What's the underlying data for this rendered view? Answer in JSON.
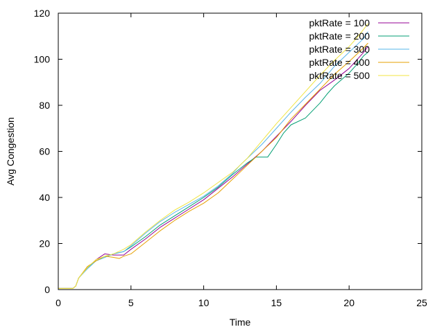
{
  "chart_data": {
    "type": "line",
    "title": "",
    "xlabel": "Time",
    "ylabel": "Avg Congestion",
    "xlim": [
      0,
      25
    ],
    "ylim": [
      0,
      120
    ],
    "x_ticks": [
      0,
      5,
      10,
      15,
      20,
      25
    ],
    "y_ticks": [
      0,
      20,
      40,
      60,
      80,
      100,
      120
    ],
    "grid": false,
    "legend_position": "top-right",
    "series": [
      {
        "name": "pktRate = 100",
        "color": "#940094",
        "points": [
          [
            0,
            0.5
          ],
          [
            1,
            0.5
          ],
          [
            1.2,
            1.5
          ],
          [
            1.4,
            5
          ],
          [
            2,
            9.5
          ],
          [
            2.6,
            13
          ],
          [
            3.2,
            15.5
          ],
          [
            3.8,
            15
          ],
          [
            4.5,
            15
          ],
          [
            5,
            17.5
          ],
          [
            6,
            22
          ],
          [
            7,
            27
          ],
          [
            8,
            31
          ],
          [
            9,
            35
          ],
          [
            10,
            39
          ],
          [
            11,
            44
          ],
          [
            12,
            49
          ],
          [
            13,
            54.5
          ],
          [
            14,
            60
          ],
          [
            15,
            66.5
          ],
          [
            16,
            73
          ],
          [
            17,
            80
          ],
          [
            18,
            86.5
          ],
          [
            19,
            91
          ],
          [
            20,
            96
          ],
          [
            20.5,
            99.5
          ],
          [
            21,
            103
          ],
          [
            21.3,
            105.5
          ]
        ]
      },
      {
        "name": "pktRate = 200",
        "color": "#009e73",
        "points": [
          [
            0,
            0.5
          ],
          [
            1,
            0.5
          ],
          [
            1.2,
            1.5
          ],
          [
            1.4,
            5
          ],
          [
            2,
            9.5
          ],
          [
            2.6,
            12.5
          ],
          [
            3.2,
            14
          ],
          [
            3.8,
            15.5
          ],
          [
            4.5,
            16.5
          ],
          [
            5,
            18.5
          ],
          [
            6,
            23
          ],
          [
            7,
            28
          ],
          [
            8,
            32
          ],
          [
            9,
            36
          ],
          [
            10,
            40
          ],
          [
            11,
            44.5
          ],
          [
            12,
            50
          ],
          [
            13,
            55
          ],
          [
            13.6,
            57.5
          ],
          [
            14.4,
            57.5
          ],
          [
            15,
            63
          ],
          [
            15.5,
            68
          ],
          [
            16,
            71.5
          ],
          [
            17,
            74.5
          ],
          [
            18,
            81
          ],
          [
            18.5,
            85
          ],
          [
            19,
            88.5
          ],
          [
            20,
            94
          ],
          [
            20.5,
            97.5
          ],
          [
            21,
            101.5
          ],
          [
            21.3,
            103
          ]
        ]
      },
      {
        "name": "pktRate = 300",
        "color": "#56b4e9",
        "points": [
          [
            0,
            0.5
          ],
          [
            1,
            0.5
          ],
          [
            1.2,
            1.5
          ],
          [
            1.4,
            5
          ],
          [
            2,
            9
          ],
          [
            2.6,
            12.5
          ],
          [
            3.2,
            14
          ],
          [
            3.8,
            15.5
          ],
          [
            4.5,
            16.5
          ],
          [
            5,
            19
          ],
          [
            6,
            24.5
          ],
          [
            7,
            29.5
          ],
          [
            8,
            33.5
          ],
          [
            9,
            37
          ],
          [
            10,
            40.5
          ],
          [
            11,
            45
          ],
          [
            12,
            50.5
          ],
          [
            12.5,
            54
          ],
          [
            13,
            57
          ],
          [
            14,
            63
          ],
          [
            15,
            70
          ],
          [
            16,
            77
          ],
          [
            17,
            83.5
          ],
          [
            18,
            89.5
          ],
          [
            19,
            97
          ],
          [
            20,
            103
          ],
          [
            20.5,
            106
          ],
          [
            21,
            109
          ],
          [
            21.3,
            112
          ]
        ]
      },
      {
        "name": "pktRate = 400",
        "color": "#e69f00",
        "points": [
          [
            0,
            0.5
          ],
          [
            1,
            0.5
          ],
          [
            1.2,
            1.5
          ],
          [
            1.4,
            5
          ],
          [
            2,
            10
          ],
          [
            2.6,
            12.5
          ],
          [
            3.2,
            14.5
          ],
          [
            3.8,
            14
          ],
          [
            4.2,
            13.5
          ],
          [
            4.5,
            14.5
          ],
          [
            5,
            15.5
          ],
          [
            6,
            20.5
          ],
          [
            7,
            25.5
          ],
          [
            8,
            30
          ],
          [
            9,
            34
          ],
          [
            10,
            37.5
          ],
          [
            11,
            42
          ],
          [
            12,
            48
          ],
          [
            13,
            54
          ],
          [
            14,
            60
          ],
          [
            15,
            66
          ],
          [
            16,
            74
          ],
          [
            17,
            80.5
          ],
          [
            18,
            87
          ],
          [
            19,
            93.5
          ],
          [
            20,
            99
          ],
          [
            20.5,
            102
          ],
          [
            21,
            105
          ],
          [
            21.3,
            107
          ]
        ]
      },
      {
        "name": "pktRate = 500",
        "color": "#f0e442",
        "points": [
          [
            0,
            0.5
          ],
          [
            1,
            0.5
          ],
          [
            1.2,
            1.5
          ],
          [
            1.4,
            5
          ],
          [
            2,
            9.5
          ],
          [
            2.6,
            13
          ],
          [
            3.2,
            14.5
          ],
          [
            3.8,
            15.5
          ],
          [
            4.5,
            17.5
          ],
          [
            5,
            19.5
          ],
          [
            6,
            25
          ],
          [
            7,
            30
          ],
          [
            8,
            34.5
          ],
          [
            9,
            38
          ],
          [
            10,
            42
          ],
          [
            11,
            46.5
          ],
          [
            12,
            51
          ],
          [
            13,
            57
          ],
          [
            14,
            64.5
          ],
          [
            15,
            72
          ],
          [
            16,
            79
          ],
          [
            17,
            86
          ],
          [
            18,
            93
          ],
          [
            19,
            99.5
          ],
          [
            20,
            105.5
          ],
          [
            20.5,
            109
          ],
          [
            21,
            113
          ],
          [
            21.3,
            115.5
          ]
        ]
      }
    ]
  }
}
